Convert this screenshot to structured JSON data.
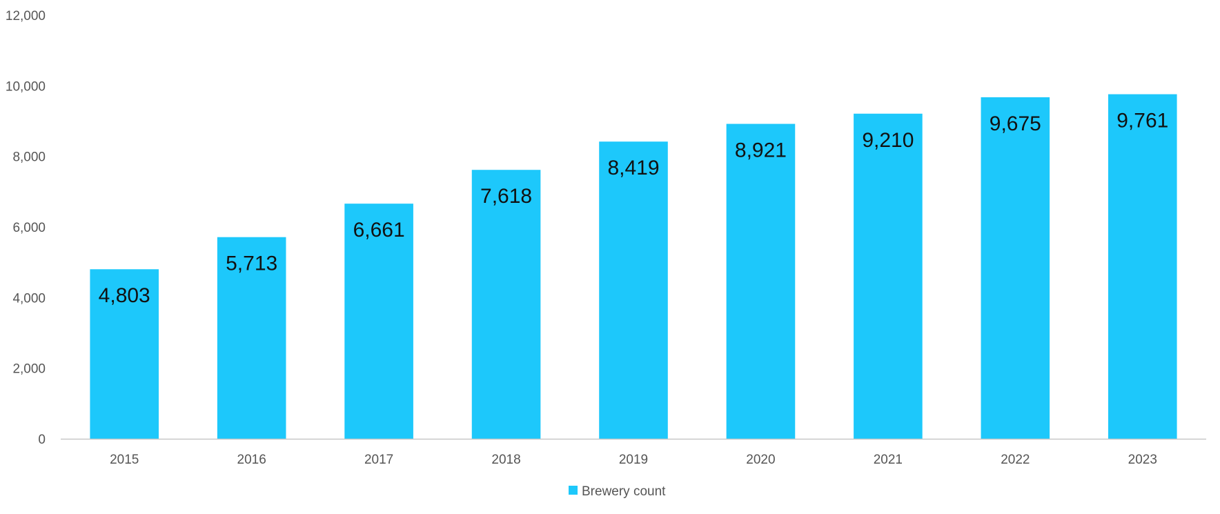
{
  "chart_data": {
    "type": "bar",
    "categories": [
      "2015",
      "2016",
      "2017",
      "2018",
      "2019",
      "2020",
      "2021",
      "2022",
      "2023"
    ],
    "series": [
      {
        "name": "Brewery count",
        "values": [
          4803,
          5713,
          6661,
          7618,
          8419,
          8921,
          9210,
          9675,
          9761
        ],
        "color": "#1DC8FB"
      }
    ],
    "data_labels": [
      "4,803",
      "5,713",
      "6,661",
      "7,618",
      "8,419",
      "8,921",
      "9,210",
      "9,675",
      "9,761"
    ],
    "y_ticks": [
      0,
      2000,
      4000,
      6000,
      8000,
      10000,
      12000
    ],
    "y_tick_labels": [
      "0",
      "2,000",
      "4,000",
      "6,000",
      "8,000",
      "10,000",
      "12,000"
    ],
    "ylim": [
      0,
      12000
    ],
    "grid": false,
    "legend": {
      "position": "bottom",
      "label": "Brewery count"
    },
    "colors": {
      "bar": "#1DC8FB",
      "axis": "#C8C8C8",
      "tick_text": "#555555",
      "label_text": "#111111"
    }
  }
}
